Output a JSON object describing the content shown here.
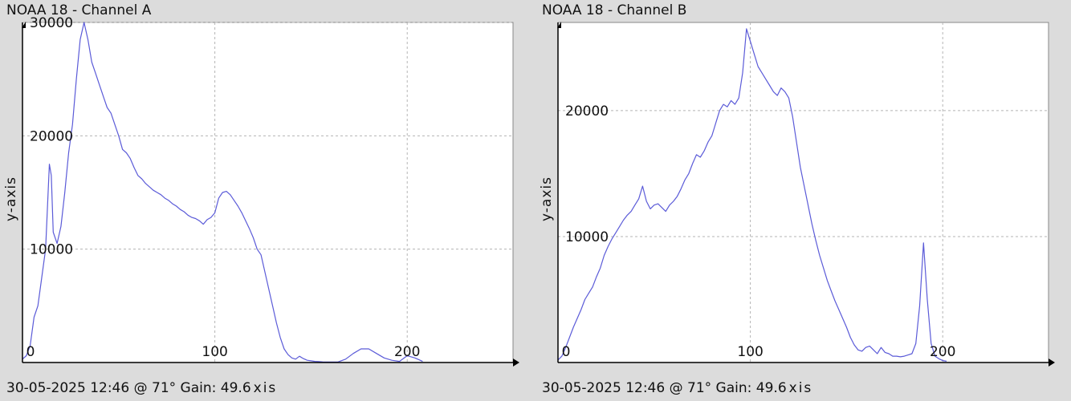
{
  "colors": {
    "background": "#dcdcdc",
    "plot_area": "#ffffff",
    "line": "#5b5bd8",
    "grid": "#b4b4b4",
    "axis": "#000000"
  },
  "panels": [
    {
      "title": "NOAA 18 - Channel A",
      "footer": {
        "timestamp": "30-05-2025 12:46 @ 71°",
        "gain_label": "Gain:",
        "gain_value": "49.6",
        "xaxis_label": "xis"
      }
    },
    {
      "title": "NOAA 18 - Channel B",
      "footer": {
        "timestamp": "30-05-2025 12:46 @ 71°",
        "gain_label": "Gain:",
        "gain_value": "49.6",
        "xaxis_label": "xis"
      }
    }
  ],
  "chart_data": [
    {
      "type": "line",
      "title": "NOAA 18 - Channel A",
      "xlabel": "xis",
      "ylabel": "y-axis",
      "xlim": [
        0,
        255
      ],
      "ylim": [
        0,
        30000
      ],
      "xticks": [
        0,
        100,
        200
      ],
      "yticks": [
        10000,
        20000,
        30000
      ],
      "grid": true,
      "x": [
        0,
        2,
        4,
        6,
        8,
        10,
        12,
        14,
        15,
        16,
        18,
        20,
        22,
        24,
        26,
        28,
        30,
        32,
        34,
        36,
        38,
        40,
        42,
        44,
        46,
        48,
        50,
        52,
        54,
        56,
        58,
        60,
        62,
        64,
        66,
        68,
        70,
        72,
        74,
        76,
        78,
        80,
        82,
        84,
        86,
        88,
        90,
        92,
        94,
        96,
        98,
        100,
        102,
        104,
        106,
        108,
        110,
        112,
        114,
        116,
        118,
        120,
        122,
        124,
        126,
        128,
        130,
        132,
        134,
        136,
        138,
        140,
        142,
        144,
        146,
        148,
        150,
        152,
        154,
        156,
        158,
        160,
        164,
        168,
        172,
        176,
        180,
        184,
        188,
        192,
        196,
        200,
        204,
        208
      ],
      "y": [
        300,
        600,
        1500,
        4000,
        5000,
        7500,
        10000,
        17500,
        16500,
        11500,
        10500,
        12000,
        15000,
        18500,
        21000,
        25000,
        28500,
        30000,
        28500,
        26500,
        25500,
        24500,
        23500,
        22500,
        22000,
        21000,
        20000,
        18800,
        18500,
        18000,
        17200,
        16500,
        16200,
        15800,
        15500,
        15200,
        15000,
        14800,
        14500,
        14300,
        14000,
        13800,
        13500,
        13300,
        13000,
        12800,
        12700,
        12500,
        12200,
        12600,
        12800,
        13200,
        14500,
        15000,
        15100,
        14800,
        14300,
        13800,
        13200,
        12500,
        11800,
        11000,
        10000,
        9500,
        8000,
        6500,
        5000,
        3500,
        2200,
        1200,
        700,
        400,
        300,
        550,
        350,
        200,
        150,
        100,
        80,
        60,
        50,
        40,
        50,
        300,
        800,
        1200,
        1200,
        800,
        400,
        200,
        100,
        600,
        400,
        100
      ]
    },
    {
      "type": "line",
      "title": "NOAA 18 - Channel B",
      "xlabel": "xis",
      "ylabel": "y-axis",
      "xlim": [
        0,
        255
      ],
      "ylim": [
        0,
        27000
      ],
      "xticks": [
        0,
        100,
        200
      ],
      "yticks": [
        10000,
        20000
      ],
      "grid": true,
      "x": [
        0,
        2,
        4,
        6,
        8,
        10,
        12,
        14,
        16,
        18,
        20,
        22,
        24,
        26,
        28,
        30,
        32,
        34,
        36,
        38,
        40,
        42,
        44,
        46,
        48,
        50,
        52,
        54,
        56,
        58,
        60,
        62,
        64,
        66,
        68,
        70,
        72,
        74,
        76,
        78,
        80,
        82,
        84,
        86,
        88,
        90,
        92,
        94,
        96,
        98,
        100,
        102,
        104,
        106,
        108,
        110,
        112,
        114,
        116,
        118,
        120,
        122,
        124,
        126,
        128,
        130,
        132,
        134,
        136,
        138,
        140,
        142,
        144,
        146,
        148,
        150,
        152,
        154,
        156,
        158,
        160,
        162,
        164,
        166,
        168,
        170,
        172,
        174,
        176,
        178,
        180,
        182,
        184,
        186,
        188,
        190,
        192,
        194,
        196,
        198,
        200,
        202
      ],
      "y": [
        200,
        500,
        1200,
        2000,
        2800,
        3500,
        4200,
        5000,
        5500,
        6000,
        6800,
        7500,
        8500,
        9200,
        9800,
        10300,
        10800,
        11300,
        11700,
        12000,
        12500,
        13000,
        14000,
        12800,
        12200,
        12500,
        12600,
        12300,
        12000,
        12500,
        12800,
        13200,
        13800,
        14500,
        15000,
        15800,
        16500,
        16300,
        16800,
        17500,
        18000,
        19000,
        20000,
        20500,
        20300,
        20800,
        20500,
        21000,
        23000,
        26500,
        25500,
        24500,
        23500,
        23000,
        22500,
        22000,
        21500,
        21200,
        21800,
        21500,
        21000,
        19500,
        17500,
        15500,
        14000,
        12500,
        11000,
        9700,
        8500,
        7500,
        6500,
        5700,
        4900,
        4200,
        3500,
        2800,
        2000,
        1400,
        1000,
        900,
        1200,
        1300,
        1000,
        700,
        1200,
        800,
        700,
        500,
        500,
        450,
        500,
        600,
        700,
        1500,
        4500,
        9500,
        5000,
        1500,
        500,
        300,
        150,
        100
      ]
    }
  ]
}
